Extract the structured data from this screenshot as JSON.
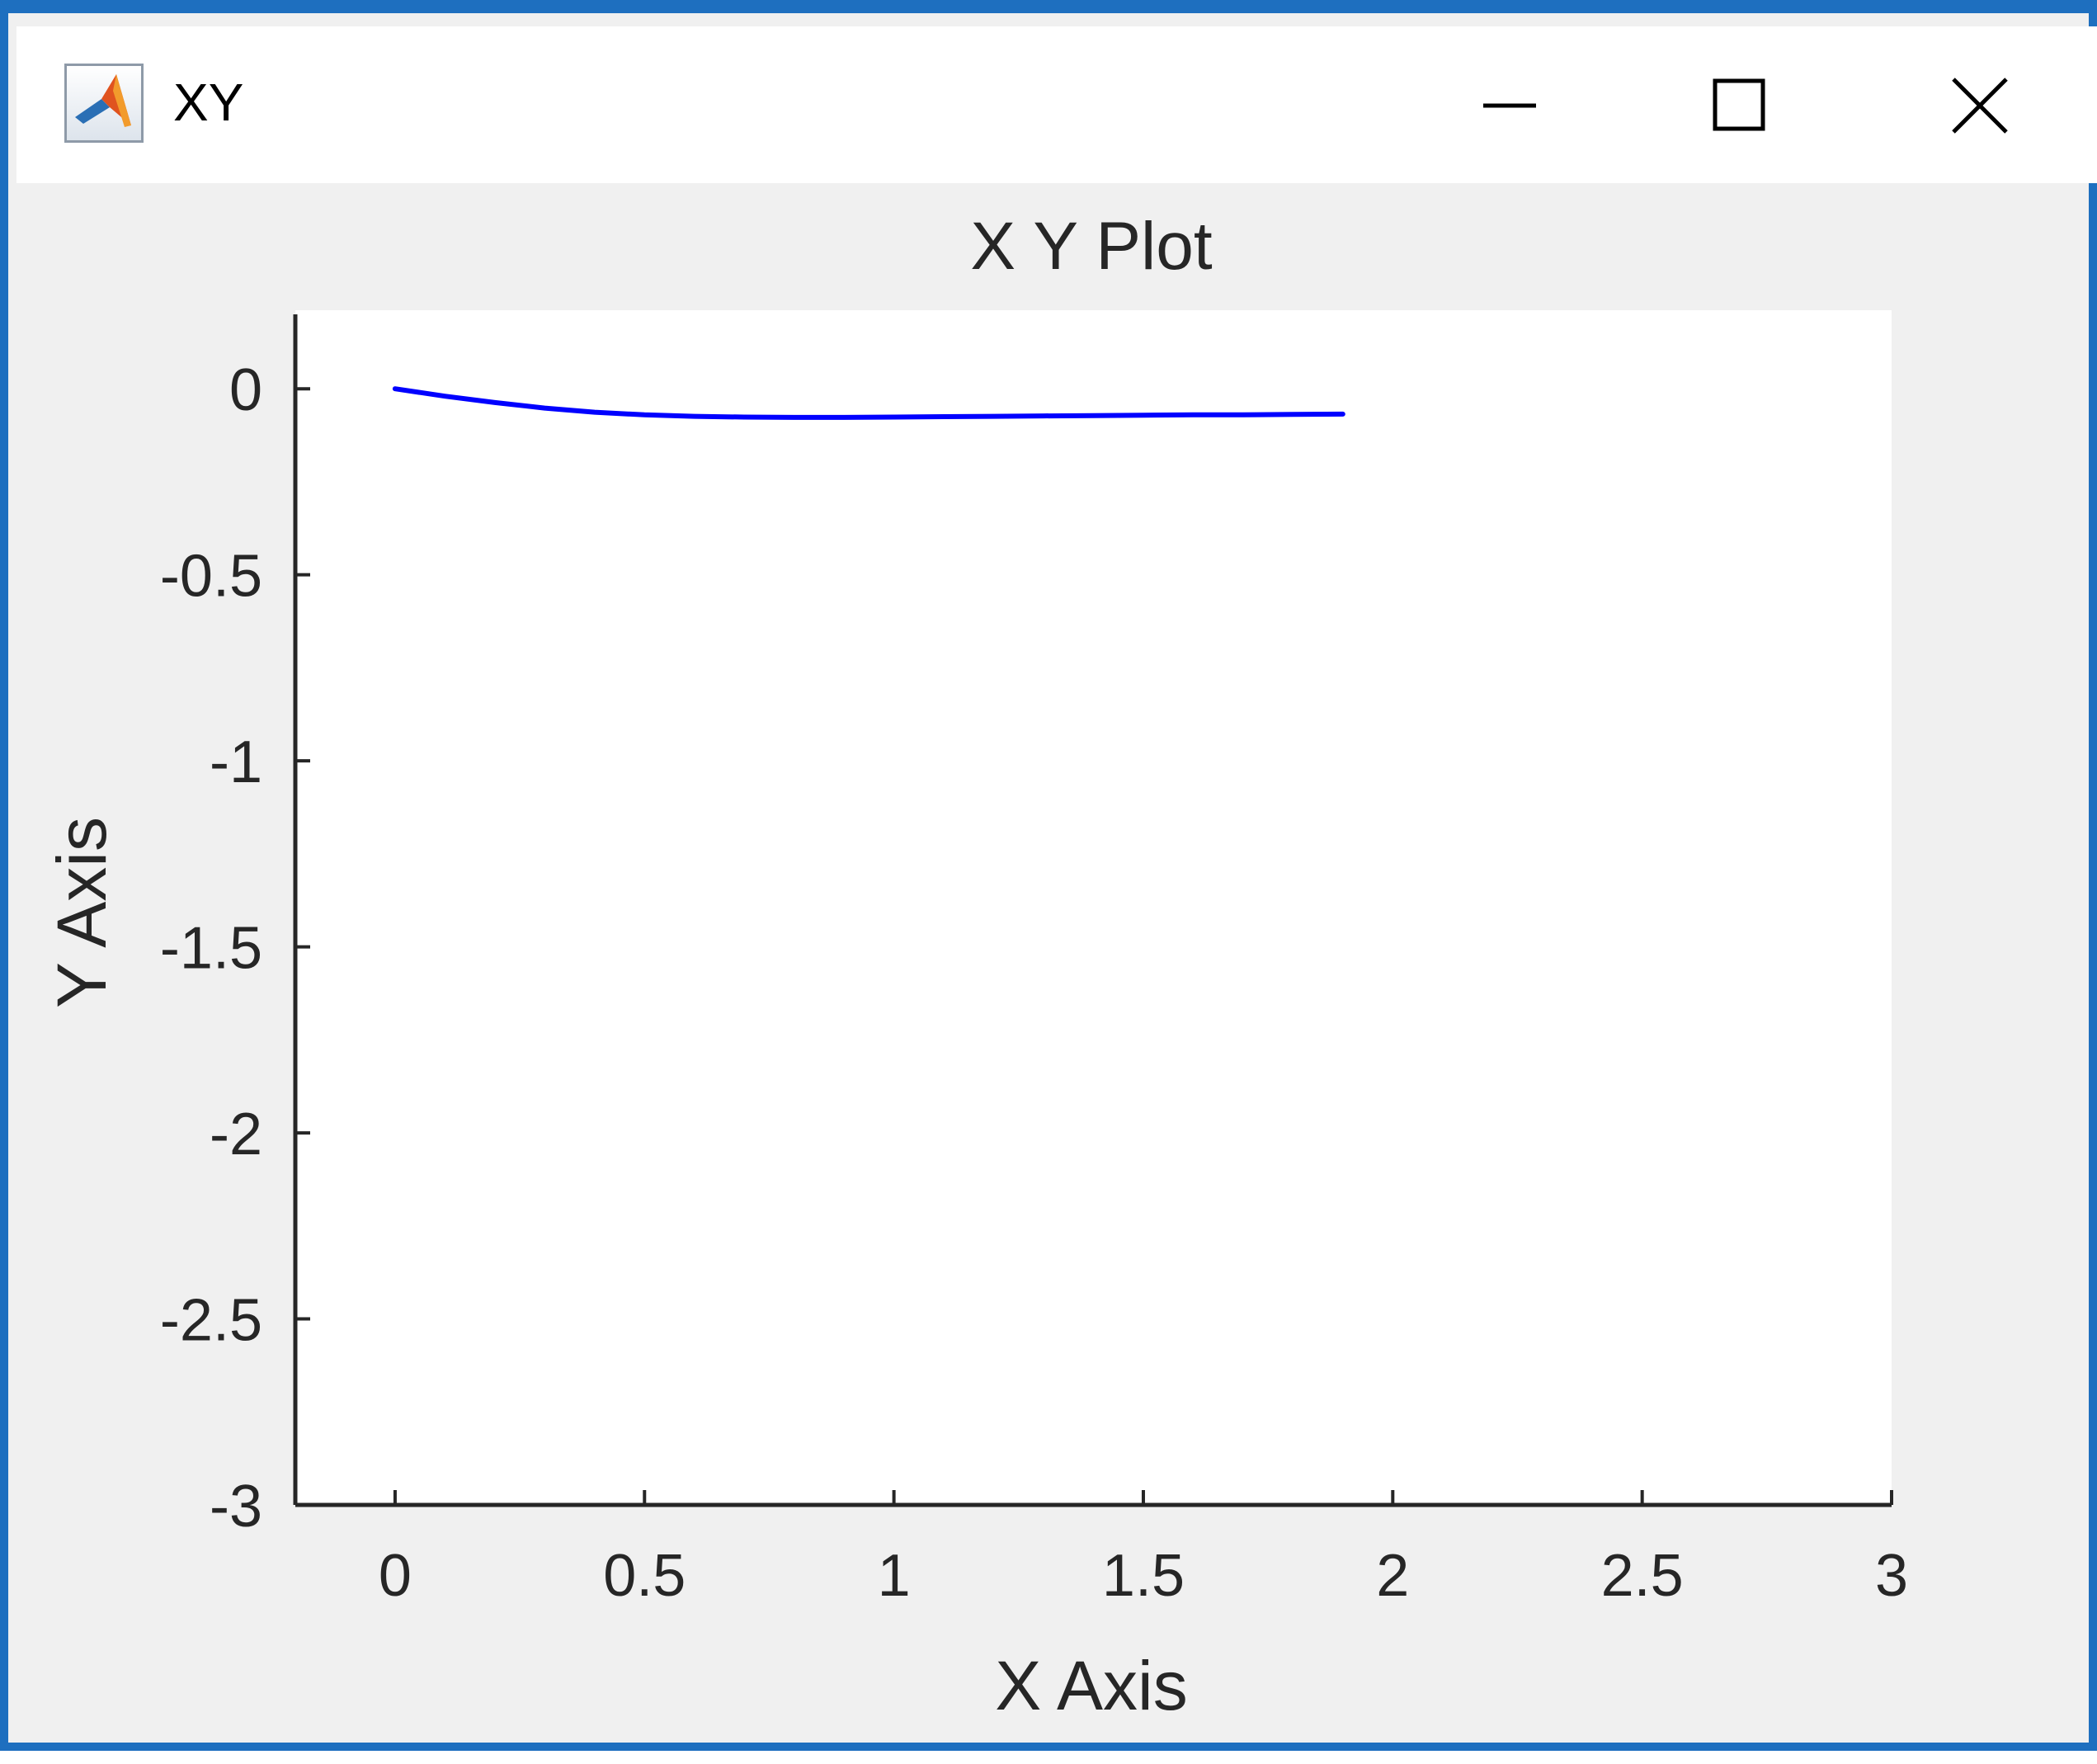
{
  "window": {
    "title": "XY",
    "controls": {
      "minimize": "minimize-icon",
      "maximize": "maximize-icon",
      "close": "close-icon"
    },
    "app_icon": "matlab-logo-icon"
  },
  "colors": {
    "window_border": "#1e6fbf",
    "figure_background": "#f0f0f0",
    "axes_background": "#ffffff",
    "line": "#0000ff",
    "text": "#262626"
  },
  "chart_data": {
    "type": "line",
    "title": "X Y Plot",
    "xlabel": "X Axis",
    "ylabel": "Y Axis",
    "xlim": [
      -0.2,
      3
    ],
    "ylim": [
      -3,
      0.2
    ],
    "xticks": [
      0,
      0.5,
      1,
      1.5,
      2,
      2.5,
      3
    ],
    "xtick_labels": [
      "0",
      "0.5",
      "1",
      "1.5",
      "2",
      "2.5",
      "3"
    ],
    "yticks": [
      0,
      -0.5,
      -1,
      -1.5,
      -2,
      -2.5,
      -3
    ],
    "ytick_labels": [
      "0",
      "-0.5",
      "-1",
      "-1.5",
      "-2",
      "-2.5",
      "-3"
    ],
    "grid": false,
    "series": [
      {
        "color": "#0000ff",
        "x": [
          0,
          0.1,
          0.2,
          0.3,
          0.4,
          0.5,
          0.6,
          0.7,
          0.8,
          0.9,
          1.0,
          1.1,
          1.2,
          1.3,
          1.4,
          1.5,
          1.6,
          1.7,
          1.8,
          1.9
        ],
        "y": [
          0,
          -0.02,
          -0.037,
          -0.052,
          -0.063,
          -0.07,
          -0.074,
          -0.076,
          -0.077,
          -0.077,
          -0.076,
          -0.075,
          -0.074,
          -0.073,
          -0.072,
          -0.071,
          -0.07,
          -0.07,
          -0.069,
          -0.068
        ]
      }
    ]
  }
}
